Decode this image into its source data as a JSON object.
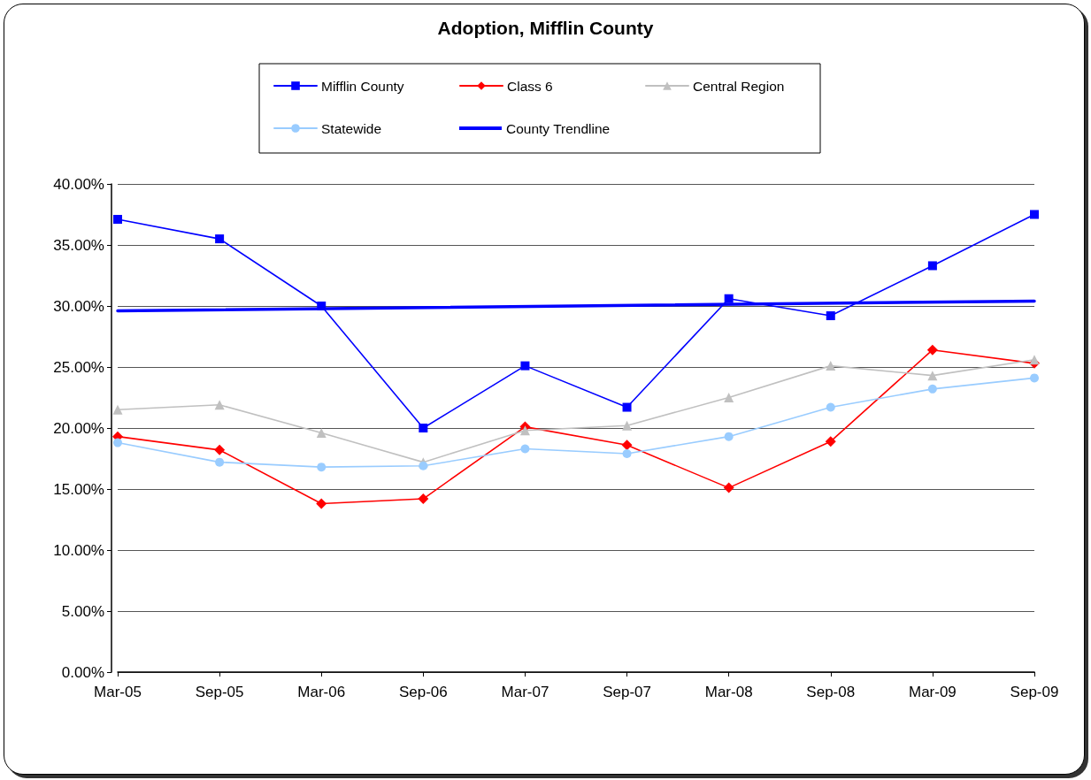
{
  "chart_data": {
    "type": "line",
    "title": "Adoption, Mifflin County",
    "categories": [
      "Mar-05",
      "Sep-05",
      "Mar-06",
      "Sep-06",
      "Mar-07",
      "Sep-07",
      "Mar-08",
      "Sep-08",
      "Mar-09",
      "Sep-09"
    ],
    "series": [
      {
        "name": "Mifflin County",
        "color": "#0000ff",
        "marker": "square",
        "values": [
          37.1,
          35.5,
          30.0,
          20.0,
          25.1,
          21.7,
          30.6,
          29.2,
          33.3,
          37.5
        ]
      },
      {
        "name": "Class 6",
        "color": "#ff0000",
        "marker": "diamond",
        "values": [
          19.3,
          18.2,
          13.8,
          14.2,
          20.1,
          18.6,
          15.1,
          18.9,
          26.4,
          25.3
        ]
      },
      {
        "name": "Central Region",
        "color": "#c0c0c0",
        "marker": "triangle",
        "values": [
          21.5,
          21.9,
          19.6,
          17.2,
          19.8,
          20.2,
          22.5,
          25.1,
          24.3,
          25.6
        ]
      },
      {
        "name": "Statewide",
        "color": "#99ccff",
        "marker": "circle",
        "values": [
          18.8,
          17.2,
          16.8,
          16.9,
          18.3,
          17.9,
          19.3,
          21.7,
          23.2,
          24.1
        ]
      },
      {
        "name": "County Trendline",
        "color": "#0000ff",
        "marker": "none",
        "x": [
          "Mar-05",
          "Sep-09"
        ],
        "values": [
          29.6,
          30.4
        ]
      }
    ],
    "ylim": [
      0,
      40
    ],
    "yticks": [
      {
        "value": 0,
        "label": "0.00%"
      },
      {
        "value": 5,
        "label": "5.00%"
      },
      {
        "value": 10,
        "label": "10.00%"
      },
      {
        "value": 15,
        "label": "15.00%"
      },
      {
        "value": 20,
        "label": "20.00%"
      },
      {
        "value": 25,
        "label": "25.00%"
      },
      {
        "value": 30,
        "label": "30.00%"
      },
      {
        "value": 35,
        "label": "35.00%"
      },
      {
        "value": 40,
        "label": "40.00%"
      }
    ],
    "grid": "y",
    "legend": "top",
    "line_style": "solid"
  }
}
